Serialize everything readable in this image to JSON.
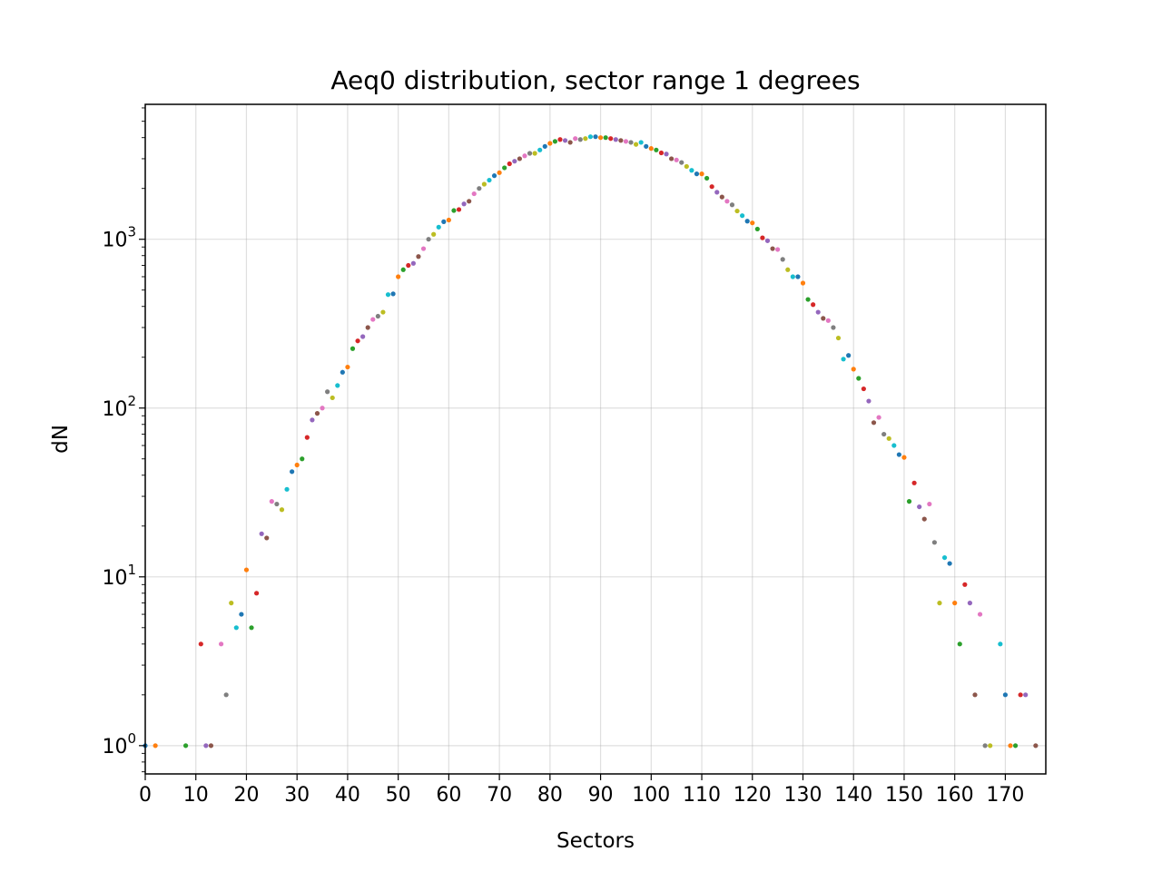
{
  "chart_data": {
    "type": "scatter",
    "title": "Aeq0 distribution, sector range 1 degrees",
    "xlabel": "Sectors",
    "ylabel": "dN",
    "yscale": "log",
    "xlim": [
      0,
      178
    ],
    "ylim": [
      0.68,
      6300
    ],
    "grid": true,
    "xticks": [
      "0",
      "10",
      "20",
      "30",
      "40",
      "50",
      "60",
      "70",
      "80",
      "90",
      "100",
      "110",
      "120",
      "130",
      "140",
      "150",
      "160",
      "170"
    ],
    "yticks": [
      {
        "base": "10",
        "exp": "0"
      },
      {
        "base": "10",
        "exp": "1"
      },
      {
        "base": "10",
        "exp": "2"
      },
      {
        "base": "10",
        "exp": "3"
      }
    ],
    "palette": [
      "#1f77b4",
      "#ff7f0e",
      "#2ca02c",
      "#d62728",
      "#9467bd",
      "#8c564b",
      "#e377c2",
      "#7f7f7f",
      "#bcbd22",
      "#17becf"
    ],
    "points": [
      [
        0,
        1
      ],
      [
        2,
        1
      ],
      [
        8,
        1
      ],
      [
        11,
        4
      ],
      [
        12,
        1
      ],
      [
        13,
        1
      ],
      [
        15,
        4
      ],
      [
        16,
        2
      ],
      [
        17,
        7
      ],
      [
        18,
        5
      ],
      [
        19,
        6
      ],
      [
        20,
        11
      ],
      [
        21,
        5
      ],
      [
        22,
        8
      ],
      [
        23,
        18
      ],
      [
        24,
        17
      ],
      [
        25,
        28
      ],
      [
        26,
        27
      ],
      [
        27,
        25
      ],
      [
        28,
        33
      ],
      [
        29,
        42
      ],
      [
        30,
        46
      ],
      [
        31,
        50
      ],
      [
        32,
        67
      ],
      [
        33,
        85
      ],
      [
        34,
        93
      ],
      [
        35,
        100
      ],
      [
        36,
        125
      ],
      [
        37,
        115
      ],
      [
        38,
        136
      ],
      [
        39,
        163
      ],
      [
        40,
        175
      ],
      [
        41,
        225
      ],
      [
        42,
        250
      ],
      [
        43,
        265
      ],
      [
        44,
        300
      ],
      [
        45,
        335
      ],
      [
        46,
        350
      ],
      [
        47,
        370
      ],
      [
        48,
        470
      ],
      [
        49,
        475
      ],
      [
        50,
        600
      ],
      [
        51,
        660
      ],
      [
        52,
        700
      ],
      [
        53,
        720
      ],
      [
        54,
        790
      ],
      [
        55,
        880
      ],
      [
        56,
        1000
      ],
      [
        57,
        1070
      ],
      [
        58,
        1180
      ],
      [
        59,
        1270
      ],
      [
        60,
        1300
      ],
      [
        61,
        1480
      ],
      [
        62,
        1500
      ],
      [
        63,
        1620
      ],
      [
        64,
        1680
      ],
      [
        65,
        1860
      ],
      [
        66,
        2000
      ],
      [
        67,
        2120
      ],
      [
        68,
        2240
      ],
      [
        69,
        2380
      ],
      [
        70,
        2480
      ],
      [
        71,
        2650
      ],
      [
        72,
        2800
      ],
      [
        73,
        2900
      ],
      [
        74,
        3000
      ],
      [
        75,
        3120
      ],
      [
        76,
        3230
      ],
      [
        77,
        3230
      ],
      [
        78,
        3380
      ],
      [
        79,
        3550
      ],
      [
        80,
        3700
      ],
      [
        81,
        3800
      ],
      [
        82,
        3900
      ],
      [
        83,
        3850
      ],
      [
        84,
        3750
      ],
      [
        85,
        3950
      ],
      [
        86,
        3900
      ],
      [
        87,
        3950
      ],
      [
        88,
        4050
      ],
      [
        89,
        4050
      ],
      [
        90,
        4000
      ],
      [
        91,
        4000
      ],
      [
        92,
        3950
      ],
      [
        93,
        3900
      ],
      [
        94,
        3850
      ],
      [
        95,
        3800
      ],
      [
        96,
        3750
      ],
      [
        97,
        3650
      ],
      [
        98,
        3750
      ],
      [
        99,
        3550
      ],
      [
        100,
        3450
      ],
      [
        101,
        3380
      ],
      [
        102,
        3250
      ],
      [
        103,
        3200
      ],
      [
        104,
        3000
      ],
      [
        105,
        2950
      ],
      [
        106,
        2850
      ],
      [
        107,
        2700
      ],
      [
        108,
        2560
      ],
      [
        109,
        2440
      ],
      [
        110,
        2440
      ],
      [
        111,
        2300
      ],
      [
        112,
        2050
      ],
      [
        113,
        1900
      ],
      [
        114,
        1780
      ],
      [
        115,
        1680
      ],
      [
        116,
        1600
      ],
      [
        117,
        1470
      ],
      [
        118,
        1380
      ],
      [
        119,
        1280
      ],
      [
        120,
        1250
      ],
      [
        121,
        1150
      ],
      [
        122,
        1020
      ],
      [
        123,
        980
      ],
      [
        124,
        880
      ],
      [
        125,
        870
      ],
      [
        126,
        760
      ],
      [
        127,
        660
      ],
      [
        128,
        600
      ],
      [
        129,
        600
      ],
      [
        130,
        550
      ],
      [
        131,
        440
      ],
      [
        132,
        410
      ],
      [
        133,
        370
      ],
      [
        134,
        340
      ],
      [
        135,
        330
      ],
      [
        136,
        300
      ],
      [
        137,
        260
      ],
      [
        138,
        195
      ],
      [
        139,
        205
      ],
      [
        140,
        170
      ],
      [
        141,
        150
      ],
      [
        142,
        130
      ],
      [
        143,
        110
      ],
      [
        144,
        82
      ],
      [
        145,
        88
      ],
      [
        146,
        70
      ],
      [
        147,
        66
      ],
      [
        148,
        60
      ],
      [
        149,
        53
      ],
      [
        150,
        51
      ],
      [
        151,
        28
      ],
      [
        152,
        36
      ],
      [
        153,
        26
      ],
      [
        154,
        22
      ],
      [
        155,
        27
      ],
      [
        156,
        16
      ],
      [
        157,
        7
      ],
      [
        158,
        13
      ],
      [
        159,
        12
      ],
      [
        160,
        7
      ],
      [
        161,
        4
      ],
      [
        162,
        9
      ],
      [
        163,
        7
      ],
      [
        164,
        2
      ],
      [
        165,
        6
      ],
      [
        166,
        1
      ],
      [
        167,
        1
      ],
      [
        169,
        4
      ],
      [
        170,
        2
      ],
      [
        171,
        1
      ],
      [
        172,
        1
      ],
      [
        173,
        2
      ],
      [
        174,
        2
      ],
      [
        176,
        1
      ]
    ]
  }
}
